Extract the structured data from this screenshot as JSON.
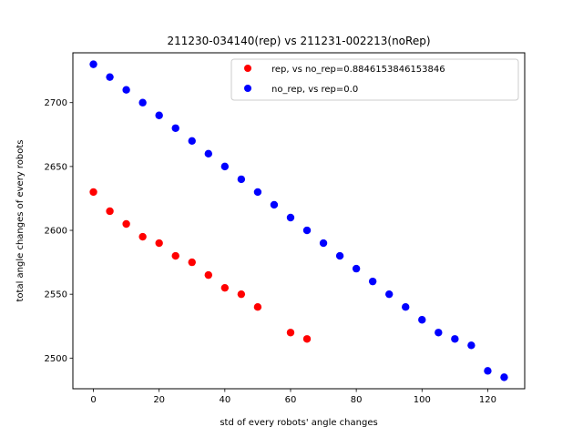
{
  "chart_data": {
    "type": "scatter",
    "title": "211230-034140(rep) vs 211231-002213(noRep)",
    "xlabel": "std of every robots' angle changes",
    "ylabel": "total angle changes of every robots",
    "xlim": [
      -6.25,
      131.25
    ],
    "ylim": [
      2476,
      2739
    ],
    "xticks": [
      0,
      20,
      40,
      60,
      80,
      100,
      120
    ],
    "yticks": [
      2500,
      2550,
      2600,
      2650,
      2700
    ],
    "grid": false,
    "legend_position": "upper right",
    "series": [
      {
        "name": "rep, vs no_rep=0.8846153846153846",
        "color": "#ff0000",
        "x": [
          0,
          5,
          10,
          15,
          20,
          25,
          30,
          35,
          40,
          45,
          50,
          60,
          65
        ],
        "y": [
          2630,
          2615,
          2605,
          2595,
          2590,
          2580,
          2575,
          2565,
          2555,
          2550,
          2540,
          2520,
          2515
        ]
      },
      {
        "name": "no_rep, vs rep=0.0",
        "color": "#0000ff",
        "x": [
          0,
          5,
          10,
          15,
          20,
          25,
          30,
          35,
          40,
          45,
          50,
          55,
          60,
          65,
          70,
          75,
          80,
          85,
          90,
          95,
          100,
          105,
          110,
          115,
          120,
          125
        ],
        "y": [
          2730,
          2720,
          2710,
          2700,
          2690,
          2680,
          2670,
          2660,
          2650,
          2640,
          2630,
          2620,
          2610,
          2600,
          2590,
          2580,
          2570,
          2560,
          2550,
          2540,
          2530,
          2520,
          2515,
          2510,
          2490,
          2485
        ]
      }
    ]
  }
}
